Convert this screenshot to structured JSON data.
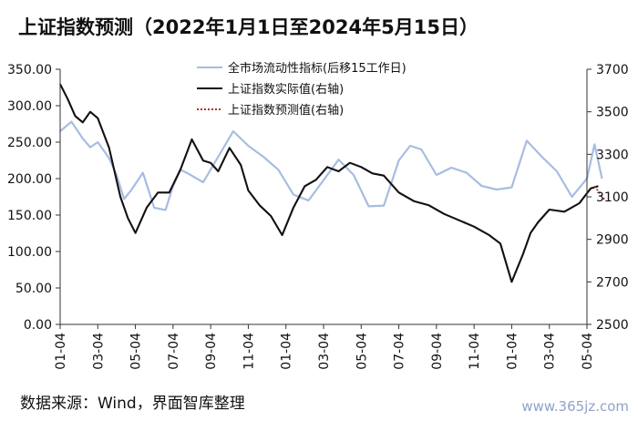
{
  "title": "上证指数预测（2022年1月1日至2024年5月15日）",
  "source": "数据来源：Wind，界面智库整理",
  "watermark": "www.365jz.com",
  "chart_data": {
    "type": "line",
    "title": "上证指数预测（2022年1月1日至2024年5月15日）",
    "x_tick_labels": [
      "01-04",
      "03-04",
      "05-04",
      "07-04",
      "09-04",
      "11-04",
      "01-04",
      "03-04",
      "05-04",
      "07-04",
      "09-04",
      "11-04",
      "01-04",
      "03-04",
      "05-04"
    ],
    "y_left": {
      "range": [
        0,
        350
      ],
      "ticks": [
        "0.00",
        "50.00",
        "100.00",
        "150.00",
        "200.00",
        "250.00",
        "300.00",
        "350.00"
      ]
    },
    "y_right": {
      "range": [
        2500,
        3700
      ],
      "ticks": [
        "2500",
        "2700",
        "2900",
        "3100",
        "3300",
        "3500",
        "3700"
      ]
    },
    "grid": false,
    "legend_position": "top-right",
    "colors": {
      "liquidity": "#a7bde0",
      "actual": "#111111",
      "forecast": "#b03030"
    },
    "series": [
      {
        "name": "全市场流动性指标(后移15工作日)",
        "axis": "left",
        "x": [
          0,
          0.3,
          0.6,
          0.8,
          1.0,
          1.3,
          1.5,
          1.7,
          1.9,
          2.2,
          2.5,
          2.8,
          3.0,
          3.2,
          3.4,
          3.8,
          4.2,
          4.6,
          5.0,
          5.4,
          5.8,
          6.2,
          6.6,
          7.0,
          7.4,
          7.8,
          8.2,
          8.6,
          9.0,
          9.3,
          9.6,
          10.0,
          10.4,
          10.8,
          11.2,
          11.6,
          12.0,
          12.4,
          12.8,
          13.2,
          13.6,
          14.0,
          14.2,
          14.4
        ],
        "y": [
          265,
          278,
          255,
          243,
          250,
          228,
          205,
          172,
          185,
          208,
          160,
          157,
          190,
          212,
          207,
          195,
          230,
          265,
          245,
          230,
          212,
          178,
          170,
          198,
          226,
          205,
          162,
          163,
          225,
          245,
          240,
          205,
          215,
          208,
          190,
          185,
          188,
          252,
          230,
          210,
          175,
          200,
          247,
          200
        ]
      },
      {
        "name": "上证指数实际值(右轴)",
        "axis": "right",
        "x": [
          0,
          0.2,
          0.4,
          0.6,
          0.8,
          1.0,
          1.3,
          1.6,
          1.8,
          2.0,
          2.3,
          2.6,
          2.9,
          3.2,
          3.5,
          3.8,
          4.0,
          4.2,
          4.5,
          4.8,
          5.0,
          5.3,
          5.6,
          5.9,
          6.2,
          6.5,
          6.8,
          7.1,
          7.4,
          7.7,
          8.0,
          8.3,
          8.6,
          9.0,
          9.4,
          9.8,
          10.2,
          10.6,
          11.0,
          11.4,
          11.7,
          12.0,
          12.3,
          12.5,
          12.7,
          13.0,
          13.4,
          13.8,
          14.1,
          14.3
        ],
        "y": [
          3630,
          3560,
          3480,
          3450,
          3500,
          3470,
          3330,
          3100,
          3000,
          2930,
          3050,
          3120,
          3120,
          3230,
          3370,
          3270,
          3260,
          3220,
          3330,
          3250,
          3130,
          3060,
          3010,
          2920,
          3050,
          3150,
          3180,
          3240,
          3220,
          3260,
          3240,
          3210,
          3200,
          3120,
          3080,
          3060,
          3020,
          2990,
          2960,
          2920,
          2880,
          2700,
          2830,
          2930,
          2980,
          3040,
          3030,
          3070,
          3140,
          3150
        ]
      },
      {
        "name": "上证指数预测值(右轴)",
        "axis": "right",
        "x": [
          14.2,
          14.35,
          14.5
        ],
        "y": [
          3150,
          3115,
          3080
        ]
      }
    ]
  }
}
